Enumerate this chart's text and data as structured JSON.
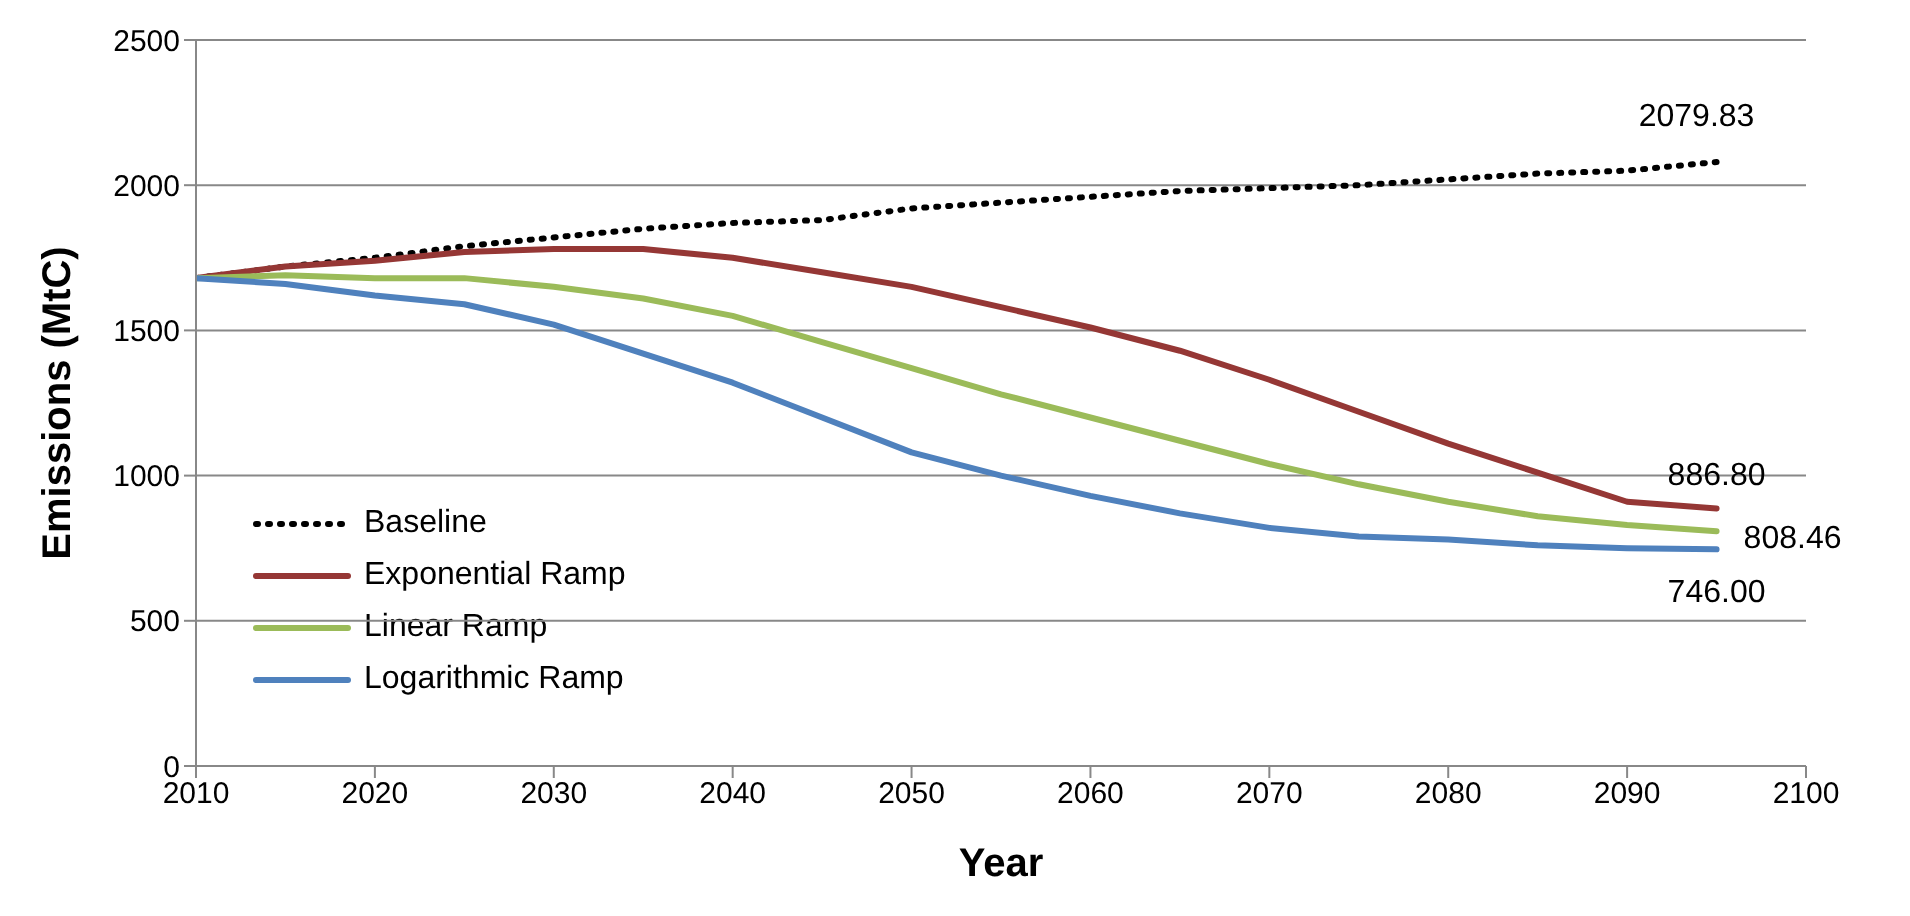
{
  "chart_data": {
    "type": "line",
    "xlabel": "Year",
    "ylabel": "Emissions (MtC)",
    "x": [
      2010,
      2015,
      2020,
      2025,
      2030,
      2035,
      2040,
      2045,
      2050,
      2055,
      2060,
      2065,
      2070,
      2075,
      2080,
      2085,
      2090,
      2095
    ],
    "series": [
      {
        "name": "Baseline",
        "color": "#000000",
        "line_style": "dotted",
        "values": [
          1680,
          1720,
          1750,
          1790,
          1820,
          1850,
          1870,
          1880,
          1920,
          1940,
          1960,
          1980,
          1990,
          2000,
          2020,
          2040,
          2050,
          2079.83
        ],
        "value_labels": [
          null,
          null,
          null,
          null,
          null,
          null,
          null,
          null,
          null,
          null,
          null,
          null,
          null,
          null,
          null,
          null,
          null,
          "2079.83"
        ]
      },
      {
        "name": "Exponential Ramp",
        "color": "#953735",
        "values": [
          1680,
          1720,
          1740,
          1770,
          1780,
          1780,
          1750,
          1700,
          1650,
          1580,
          1510,
          1430,
          1330,
          1220,
          1110,
          1010,
          910,
          886.8
        ],
        "value_labels": [
          null,
          null,
          null,
          null,
          null,
          null,
          null,
          null,
          null,
          null,
          null,
          null,
          null,
          null,
          null,
          null,
          null,
          "886.80"
        ]
      },
      {
        "name": "Linear Ramp",
        "color": "#9bbb59",
        "values": [
          1680,
          1690,
          1680,
          1680,
          1650,
          1610,
          1550,
          1460,
          1370,
          1280,
          1200,
          1120,
          1040,
          970,
          910,
          860,
          830,
          808.46
        ],
        "value_labels": [
          null,
          null,
          null,
          null,
          null,
          null,
          null,
          null,
          null,
          null,
          null,
          null,
          null,
          null,
          null,
          null,
          null,
          "808.46"
        ]
      },
      {
        "name": "Logarithmic Ramp",
        "color": "#4f81bd",
        "values": [
          1680,
          1660,
          1620,
          1590,
          1520,
          1420,
          1320,
          1200,
          1080,
          1000,
          930,
          870,
          820,
          790,
          780,
          760,
          750,
          746
        ],
        "value_labels": [
          null,
          null,
          null,
          null,
          null,
          null,
          null,
          null,
          null,
          null,
          null,
          null,
          null,
          null,
          null,
          null,
          null,
          "746.00"
        ]
      }
    ],
    "xlim": [
      2010,
      2100
    ],
    "xticks": [
      2010,
      2020,
      2030,
      2040,
      2050,
      2060,
      2070,
      2080,
      2090,
      2100
    ],
    "ylim": [
      0,
      2500
    ],
    "yticks": [
      0,
      500,
      1000,
      1500,
      2000,
      2500
    ],
    "grid": "y",
    "legend": "bottom left",
    "marker": "none",
    "line_style": "solid"
  }
}
